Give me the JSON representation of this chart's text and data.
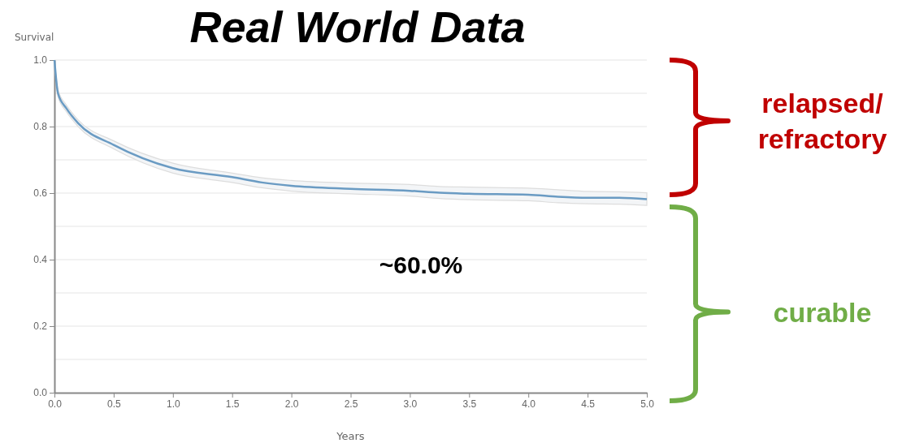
{
  "chart_data": {
    "type": "line",
    "title": "Real World Data",
    "xlabel": "Years",
    "ylabel": "Survival",
    "x": [
      0,
      0.03,
      0.1,
      0.2,
      0.5,
      1.0,
      1.5,
      1.75,
      2.0,
      2.5,
      3.0,
      3.25,
      3.5,
      4.0,
      4.25,
      4.5,
      4.75,
      5.0
    ],
    "series": [
      {
        "color": "#6a9bc3",
        "values": [
          1.0,
          0.9,
          0.855,
          0.81,
          0.745,
          0.675,
          0.648,
          0.632,
          0.622,
          0.613,
          0.607,
          0.601,
          0.598,
          0.595,
          0.589,
          0.586,
          0.586,
          0.582
        ],
        "upper": [
          1.0,
          0.91,
          0.865,
          0.82,
          0.757,
          0.69,
          0.66,
          0.646,
          0.638,
          0.63,
          0.626,
          0.62,
          0.618,
          0.615,
          0.61,
          0.605,
          0.604,
          0.601
        ],
        "lower": [
          1.0,
          0.89,
          0.845,
          0.8,
          0.733,
          0.66,
          0.632,
          0.616,
          0.606,
          0.598,
          0.591,
          0.584,
          0.58,
          0.577,
          0.571,
          0.568,
          0.567,
          0.563
        ]
      }
    ],
    "xlim": [
      0,
      5
    ],
    "xticks": [
      {
        "value": 0,
        "label": "0.0"
      },
      0.5,
      {
        "value": 1,
        "label": "1.0"
      },
      1.5,
      {
        "value": 2,
        "label": "2.0"
      },
      2.5,
      {
        "value": 3,
        "label": "3.0"
      },
      3.5,
      {
        "value": 4,
        "label": "4.0"
      },
      4.5,
      {
        "value": 5,
        "label": "5.0"
      }
    ],
    "ylim": [
      0,
      1
    ],
    "yticks": [
      {
        "value": 0,
        "label": "0.0"
      },
      {
        "value": 0.1,
        "label": null
      },
      0.2,
      {
        "value": 0.3,
        "label": null
      },
      0.4,
      {
        "value": 0.5,
        "label": null
      },
      0.6,
      {
        "value": 0.7,
        "label": null
      },
      0.8,
      {
        "value": 0.9,
        "label": null
      },
      {
        "value": 1,
        "label": "1.0"
      }
    ],
    "grid": "y",
    "marker": "none",
    "line_style": "solid",
    "annotations": [
      "~60.0%",
      "relapsed/\nrefractory",
      "curable"
    ]
  }
}
